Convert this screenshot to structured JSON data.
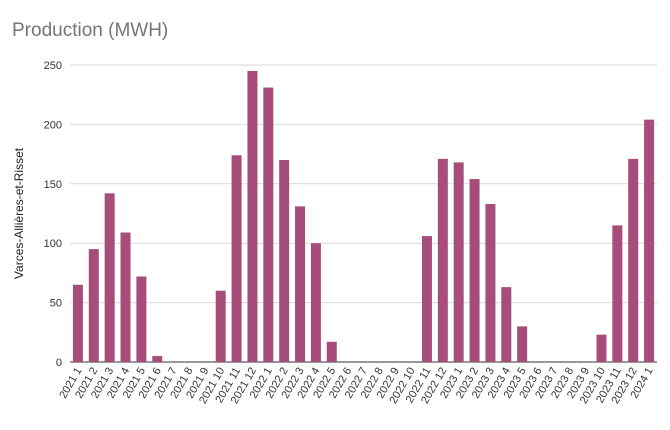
{
  "chart_data": {
    "type": "bar",
    "title": "Production (MWH)",
    "xlabel": "",
    "ylabel": "Varces-Allières-et-Risset",
    "ylim": [
      0,
      250
    ],
    "yticks": [
      0,
      50,
      100,
      150,
      200,
      250
    ],
    "grid": true,
    "bar_color": "#a64d79",
    "categories": [
      "2021 1",
      "2021 2",
      "2021 3",
      "2021 4",
      "2021 5",
      "2021 6",
      "2021 7",
      "2021 8",
      "2021 9",
      "2021 10",
      "2021 11",
      "2021 12",
      "2022 1",
      "2022 2",
      "2022 3",
      "2022 4",
      "2022 5",
      "2022 6",
      "2022 7",
      "2022 8",
      "2022 9",
      "2022 10",
      "2022 11",
      "2022 12",
      "2023 1",
      "2023 2",
      "2023 3",
      "2023 4",
      "2023 5",
      "2023 6",
      "2023 7",
      "2023 8",
      "2023 9",
      "2023 10",
      "2023 11",
      "2023 12",
      "2024 1"
    ],
    "values": [
      65,
      95,
      142,
      109,
      72,
      5,
      0,
      0,
      0,
      60,
      174,
      245,
      231,
      170,
      131,
      100,
      17,
      0,
      0,
      0,
      0,
      0,
      106,
      171,
      168,
      154,
      133,
      63,
      30,
      0,
      0,
      0,
      0,
      23,
      115,
      171,
      204
    ]
  }
}
